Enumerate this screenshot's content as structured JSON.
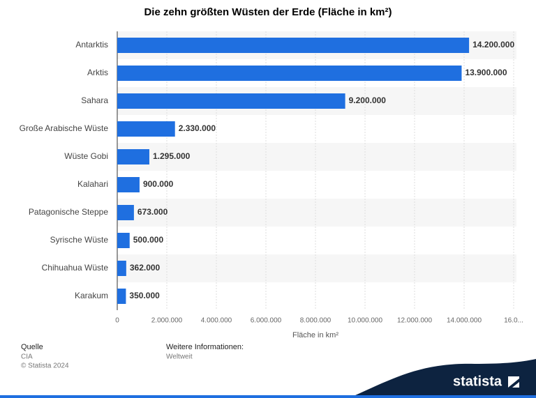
{
  "chart_data": {
    "type": "bar",
    "orientation": "horizontal",
    "title": "Die zehn größten Wüsten der Erde (Fläche in km²)",
    "x_label": "Fläche in km²",
    "categories": [
      "Antarktis",
      "Arktis",
      "Sahara",
      "Große Arabische Wüste",
      "Wüste Gobi",
      "Kalahari",
      "Patagonische Steppe",
      "Syrische Wüste",
      "Chihuahua Wüste",
      "Karakum"
    ],
    "values": [
      14200000,
      13900000,
      9200000,
      2330000,
      1295000,
      900000,
      673000,
      500000,
      362000,
      350000
    ],
    "value_labels": [
      "14.200.000",
      "13.900.000",
      "9.200.000",
      "2.330.000",
      "1.295.000",
      "900.000",
      "673.000",
      "500.000",
      "362.000",
      "350.000"
    ],
    "color": "#1f6fe0",
    "xlim": [
      0,
      16000000
    ],
    "xticks": [
      0,
      {
        "value": 2000000,
        "label": "2.000.000"
      },
      {
        "value": 4000000,
        "label": "4.000.000"
      },
      {
        "value": 6000000,
        "label": "6.000.000"
      },
      {
        "value": 8000000,
        "label": "8.000.000"
      },
      {
        "value": 10000000,
        "label": "10.000.000"
      },
      {
        "value": 12000000,
        "label": "12.000.000"
      },
      {
        "value": 14000000,
        "label": "14.000.000"
      },
      {
        "value": 16000000,
        "label": "16.0..."
      }
    ],
    "grid": true
  },
  "footer": {
    "source_title": "Quelle",
    "source": "CIA",
    "copyright": "© Statista 2024",
    "info_title": "Weitere Informationen:",
    "info": "Weltweit",
    "brand": "statista"
  }
}
